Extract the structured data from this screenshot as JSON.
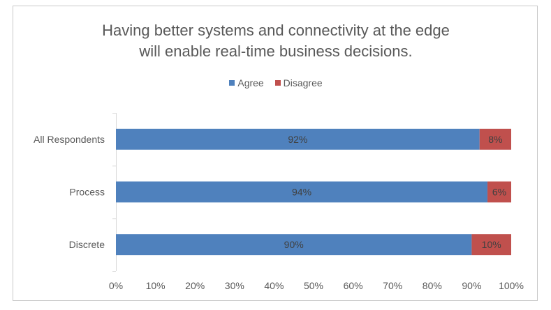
{
  "chart_data": {
    "type": "bar",
    "orientation": "horizontal",
    "stacked": true,
    "title_lines": [
      "Having better systems and connectivity at the edge",
      "will enable real-time business decisions."
    ],
    "categories": [
      "All Respondents",
      "Process",
      "Discrete"
    ],
    "series": [
      {
        "name": "Agree",
        "values": [
          92,
          94,
          90
        ],
        "labels": [
          "92%",
          "94%",
          "90%"
        ],
        "color": "#4f81bd"
      },
      {
        "name": "Disagree",
        "values": [
          8,
          6,
          10
        ],
        "labels": [
          "8%",
          "6%",
          "10%"
        ],
        "color": "#c0504d"
      }
    ],
    "xlim": [
      0,
      100
    ],
    "x_ticks": [
      "0%",
      "10%",
      "20%",
      "30%",
      "40%",
      "50%",
      "60%",
      "70%",
      "80%",
      "90%",
      "100%"
    ],
    "legend_position": "top",
    "grid": false,
    "axis_color": "#d9d9d9",
    "text_color": "#595959",
    "label_color": "#404040"
  }
}
